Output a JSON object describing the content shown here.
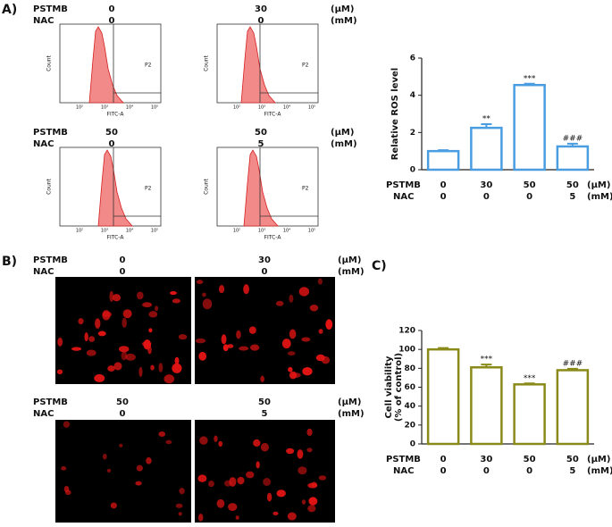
{
  "panel_labels": {
    "a": "A)",
    "b": "B)",
    "c": "C)"
  },
  "row_labels": {
    "pstmb": "PSTMB",
    "nac": "NAC"
  },
  "units": {
    "pstmb": "(μM)",
    "nac": "(mM)"
  },
  "conditions": [
    {
      "pstmb": "0",
      "nac": "0"
    },
    {
      "pstmb": "30",
      "nac": "0"
    },
    {
      "pstmb": "50",
      "nac": "0"
    },
    {
      "pstmb": "50",
      "nac": "5"
    }
  ],
  "flow_cytometry": {
    "y_label": "Count",
    "x_label": "FITC-A",
    "gate_label": "P2",
    "xticks": [
      "10²",
      "10³",
      "10⁴",
      "10⁵"
    ]
  },
  "chart_data": [
    {
      "type": "bar",
      "y_label": "Relative ROS level",
      "ylim": [
        0,
        6
      ],
      "yticks": [
        0,
        2,
        4,
        6
      ],
      "values": [
        1.0,
        2.25,
        4.55,
        1.25
      ],
      "errors": [
        0.05,
        0.2,
        0.07,
        0.15
      ],
      "annotations": [
        null,
        "**",
        "***",
        "###"
      ],
      "color": "#4a9de0"
    },
    {
      "type": "bar",
      "y_label": [
        "Cell viability",
        "(% of control)"
      ],
      "ylim": [
        0,
        120
      ],
      "yticks": [
        0,
        20,
        40,
        60,
        80,
        100,
        120
      ],
      "values": [
        100,
        81,
        63,
        78
      ],
      "errors": [
        1.5,
        3,
        1,
        1.5
      ],
      "annotations": [
        null,
        "***",
        "***",
        "###"
      ],
      "color": "#8a8a1a"
    }
  ]
}
